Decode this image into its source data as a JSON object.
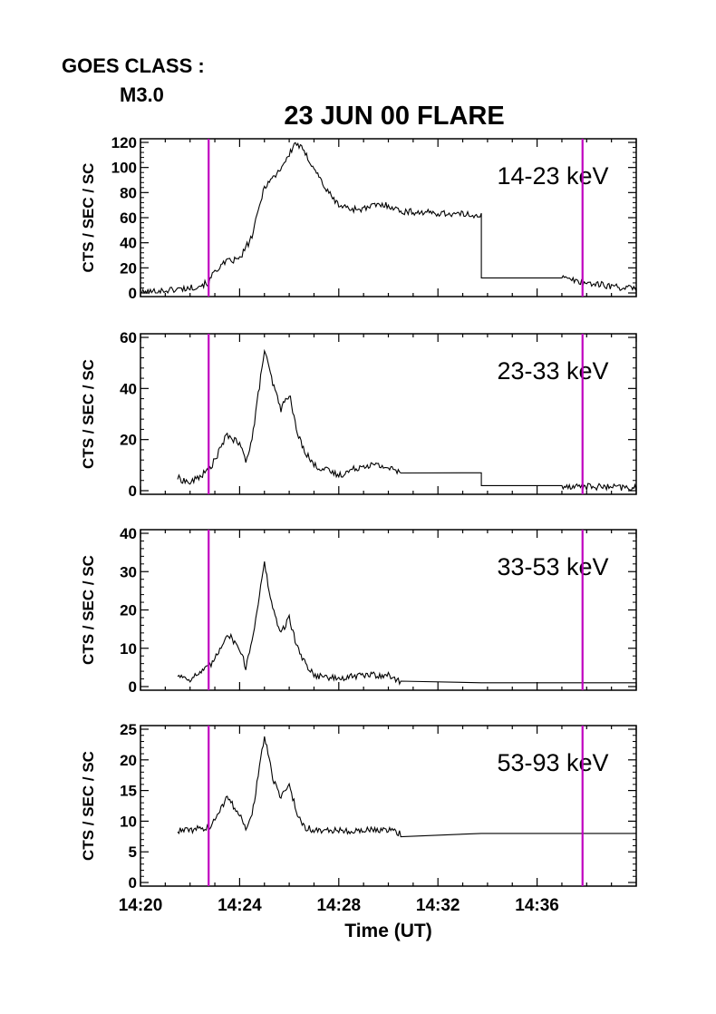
{
  "header": {
    "goes_label": "GOES CLASS :",
    "goes_value": "M3.0",
    "title": "23 JUN 00 FLARE"
  },
  "colors": {
    "trace": "#000000",
    "marker": "#c000c0",
    "axis": "#000000"
  },
  "chart_data": [
    {
      "type": "line",
      "label": "14-23 keV",
      "ylabel": "CTS / SEC / SC",
      "ylim": [
        0,
        120
      ],
      "yticks": [
        0,
        20,
        40,
        60,
        80,
        100,
        120
      ],
      "xlim": [
        "14:20",
        "14:40"
      ],
      "markers": [
        "14:22:45",
        "14:37:50"
      ],
      "series": [
        {
          "x": [
            "14:20:00",
            "14:21:00",
            "14:22:00",
            "14:22:45",
            "14:23:00",
            "14:23:30",
            "14:24:00",
            "14:24:30",
            "14:25:00",
            "14:25:30",
            "14:26:00",
            "14:26:15",
            "14:26:30",
            "14:27:00",
            "14:27:30",
            "14:28:00",
            "14:28:30",
            "14:29:00",
            "14:29:30",
            "14:30:00",
            "14:30:30",
            "14:33:45",
            "14:33:45",
            "14:37:00",
            "14:38:00",
            "14:40:00"
          ],
          "values": [
            0,
            2,
            4,
            8,
            18,
            25,
            27,
            45,
            85,
            95,
            110,
            120,
            115,
            100,
            82,
            70,
            67,
            67,
            70,
            70,
            65,
            62,
            12,
            12,
            8,
            3
          ]
        }
      ]
    },
    {
      "type": "line",
      "label": "23-33 keV",
      "ylabel": "CTS / SEC / SC",
      "ylim": [
        0,
        60
      ],
      "yticks": [
        0,
        20,
        40,
        60
      ],
      "xlim": [
        "14:20",
        "14:40"
      ],
      "markers": [
        "14:22:45",
        "14:37:50"
      ],
      "series": [
        {
          "x": [
            "14:21:30",
            "14:22:00",
            "14:22:45",
            "14:23:00",
            "14:23:30",
            "14:24:00",
            "14:24:15",
            "14:24:30",
            "14:25:00",
            "14:25:20",
            "14:25:40",
            "14:26:00",
            "14:26:20",
            "14:26:40",
            "14:27:00",
            "14:28:00",
            "14:29:00",
            "14:29:30",
            "14:30:00",
            "14:30:30",
            "14:33:45",
            "14:33:45",
            "14:37:00",
            "14:40:00"
          ],
          "values": [
            5,
            3,
            8,
            12,
            22,
            18,
            12,
            20,
            55,
            42,
            32,
            38,
            22,
            15,
            10,
            6,
            10,
            10,
            9,
            7,
            7,
            2,
            2,
            1
          ]
        }
      ]
    },
    {
      "type": "line",
      "label": "33-53 keV",
      "ylabel": "CTS / SEC / SC",
      "ylim": [
        0,
        40
      ],
      "yticks": [
        0,
        10,
        20,
        30,
        40
      ],
      "xlim": [
        "14:20",
        "14:40"
      ],
      "markers": [
        "14:22:45",
        "14:37:50"
      ],
      "series": [
        {
          "x": [
            "14:21:30",
            "14:22:00",
            "14:22:45",
            "14:23:00",
            "14:23:30",
            "14:24:00",
            "14:24:15",
            "14:24:30",
            "14:25:00",
            "14:25:20",
            "14:25:40",
            "14:26:00",
            "14:26:20",
            "14:26:40",
            "14:27:00",
            "14:28:00",
            "14:29:00",
            "14:29:30",
            "14:30:00",
            "14:30:30",
            "14:33:45",
            "14:37:00",
            "14:40:00"
          ],
          "values": [
            3,
            2,
            5,
            7,
            14,
            10,
            5,
            12,
            32,
            20,
            14,
            18,
            10,
            6,
            3,
            2,
            3,
            3,
            3,
            1,
            1,
            1,
            1
          ]
        }
      ]
    },
    {
      "type": "line",
      "label": "53-93 keV",
      "ylabel": "CTS / SEC / SC",
      "ylim": [
        0,
        25
      ],
      "yticks": [
        0,
        5,
        10,
        15,
        20,
        25
      ],
      "xlim": [
        "14:20",
        "14:40"
      ],
      "markers": [
        "14:22:45",
        "14:37:50"
      ],
      "series": [
        {
          "x": [
            "14:21:30",
            "14:22:00",
            "14:22:45",
            "14:23:00",
            "14:23:30",
            "14:24:00",
            "14:24:15",
            "14:24:30",
            "14:25:00",
            "14:25:20",
            "14:25:40",
            "14:26:00",
            "14:26:20",
            "14:26:40",
            "14:27:00",
            "14:28:00",
            "14:29:00",
            "14:30:00",
            "14:30:30",
            "14:33:45",
            "14:37:00",
            "14:40:00"
          ],
          "values": [
            8.5,
            8.5,
            9,
            10,
            14,
            11,
            9,
            11,
            24,
            17,
            14,
            16,
            11,
            9,
            8.5,
            8.5,
            8.5,
            8.5,
            8,
            8,
            8,
            8
          ]
        }
      ]
    }
  ],
  "xaxis": {
    "ticks": [
      "14:20",
      "14:24",
      "14:28",
      "14:32",
      "14:36"
    ],
    "label": "Time (UT)"
  }
}
